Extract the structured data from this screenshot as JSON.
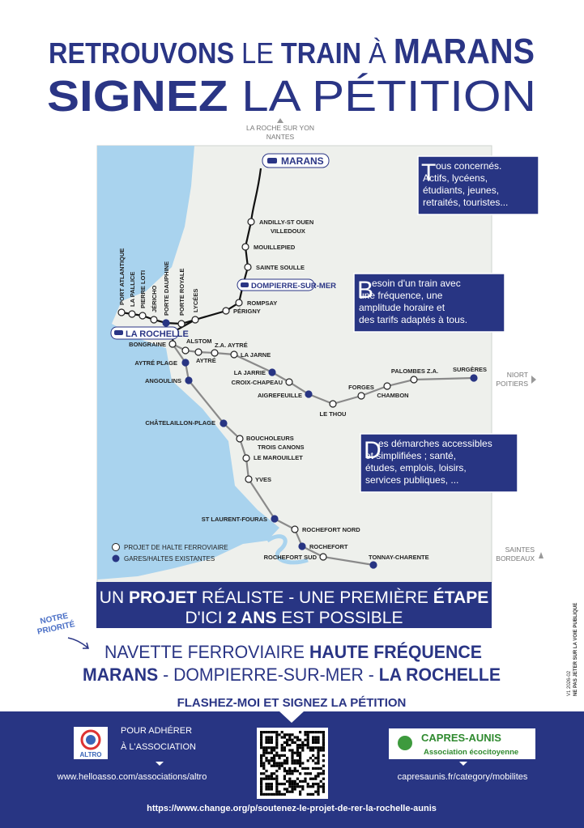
{
  "header": {
    "line1": [
      "RETROUVONS",
      "LE",
      "TRAIN",
      "À",
      "MARANS"
    ],
    "line2": [
      "SIGNEZ",
      "LA PÉTITION"
    ]
  },
  "map": {
    "directions": {
      "north": [
        "LA ROCHE SUR YON",
        "NANTES"
      ],
      "east": [
        "NIORT",
        "POITIERS"
      ],
      "south": [
        "SAINTES",
        "BORDEAUX"
      ]
    },
    "terminus": [
      "MARANS",
      "DOMPIERRE-SUR-MER",
      "LA ROCHELLE"
    ],
    "stations": [
      [
        "ANDILLY-ST OUEN",
        "VILLEDOUX"
      ],
      [
        "MOUILLEPIED"
      ],
      [
        "SAINTE SOULLE"
      ],
      [
        "ROMPSAY"
      ],
      [
        "PÉRIGNY"
      ],
      [
        "LYCÉES"
      ],
      [
        "PORTE ROYALE"
      ],
      [
        "PORTE DAUPHINE"
      ],
      [
        "JÉRICHO"
      ],
      [
        "PIERRE LOTI"
      ],
      [
        "LA PALLICE"
      ],
      [
        "PORT ATLANTIQUE"
      ],
      [
        "BONGRAINE"
      ],
      [
        "ALSTOM"
      ],
      [
        "AYTRÉ"
      ],
      [
        "Z.A. AYTRÉ"
      ],
      [
        "LA JARNE"
      ],
      [
        "LA JARRIE"
      ],
      [
        "CROIX-CHAPEAU"
      ],
      [
        "AIGREFEUILLE"
      ],
      [
        "LE THOU"
      ],
      [
        "FORGES"
      ],
      [
        "CHAMBON"
      ],
      [
        "PALOMBES Z.A."
      ],
      [
        "SURGÈRES"
      ],
      [
        "AYTRÉ PLAGE"
      ],
      [
        "ANGOULINS"
      ],
      [
        "CHÂTELAILLON-PLAGE"
      ],
      [
        "BOUCHOLEURS",
        "TROIS CANONS"
      ],
      [
        "LE MAROUILLET"
      ],
      [
        "YVES"
      ],
      [
        "ST LAURENT-FOURAS"
      ],
      [
        "ROCHEFORT NORD"
      ],
      [
        "ROCHEFORT"
      ],
      [
        "ROCHEFORT SUD"
      ],
      [
        "TONNAY-CHARENTE"
      ]
    ],
    "info_boxes": [
      {
        "initial": "T",
        "lines": [
          "ous concernés.",
          "Actifs, lycéens,",
          "étudiants, jeunes,",
          "retraités, touristes..."
        ]
      },
      {
        "initial": "B",
        "lines": [
          "esoin d'un train avec",
          "une fréquence, une",
          "amplitude horaire et",
          "des tarifs adaptés à tous."
        ]
      },
      {
        "initial": "D",
        "lines": [
          "es démarches accessibles",
          "et simplifiées ; santé,",
          "études, emplois, loisirs,",
          "services publiques, ..."
        ]
      }
    ],
    "legend": [
      "PROJET DE HALTE FERROVIAIRE",
      "GARES/HALTES EXISTANTES"
    ]
  },
  "banner": {
    "line1": [
      "UN",
      "PROJET",
      "RÉALISTE - UNE PREMIÈRE",
      "ÉTAPE"
    ],
    "line2": [
      "D'ICI",
      "2 ANS",
      "EST POSSIBLE"
    ]
  },
  "priority": {
    "stamp": [
      "NOTRE",
      "PRIORITÉ"
    ],
    "line1": [
      "NAVETTE FERROVIAIRE",
      "HAUTE FRÉQUENCE"
    ],
    "line2": [
      "MARANS",
      "- DOMPIERRE-SUR-MER -",
      "LA ROCHELLE"
    ]
  },
  "call_to_action": "FLASHEZ-MOI ET SIGNEZ LA PÉTITION",
  "side_note": [
    "V1 2026-02",
    "NE PAS JETER SUR LA VOIE PUBLIQUE"
  ],
  "footer": {
    "altro": {
      "logo": "ALTRO",
      "text": [
        "POUR ADHÉRER",
        "À L'ASSOCIATION"
      ],
      "url": "www.helloasso.com/associations/altro"
    },
    "capres": {
      "name": "CAPRES-AUNIS",
      "subtitle": "Association écocitoyenne",
      "url": "capresaunis.fr/category/mobilites"
    },
    "petition_url": "https://www.change.org/p/soutenez-le-projet-de-rer-la-rochelle-aunis"
  }
}
